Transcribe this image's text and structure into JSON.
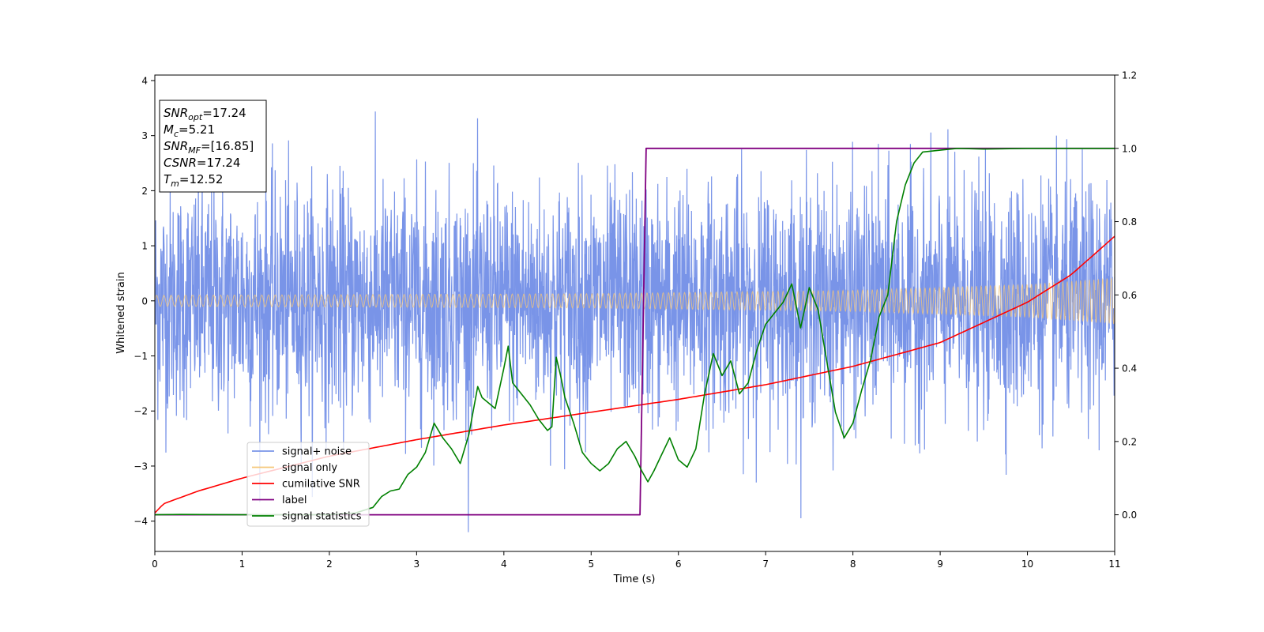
{
  "chart_data": {
    "type": "line",
    "xlabel": "Time (s)",
    "ylabel": "Whitened strain",
    "xlim": [
      0,
      11
    ],
    "ylim_left": [
      -4.55,
      4.1
    ],
    "ylim_right": [
      -0.1,
      1.2
    ],
    "xticks": [
      0,
      1,
      2,
      3,
      4,
      5,
      6,
      7,
      8,
      9,
      10,
      11
    ],
    "yticks_left": [
      -4,
      -3,
      -2,
      -1,
      0,
      1,
      2,
      3,
      4
    ],
    "yticks_right": [
      0.0,
      0.2,
      0.4,
      0.6,
      0.8,
      1.0,
      1.2
    ],
    "grid": false,
    "legend_position": "lower-left",
    "info_box": {
      "lines": [
        {
          "symbol": "SNR",
          "sub": "opt",
          "text": "=17.24"
        },
        {
          "symbol": "M",
          "sub": "c",
          "text": "=5.21"
        },
        {
          "symbol": "SNR",
          "sub": "MF",
          "text": "=[16.85]"
        },
        {
          "symbol": "CSNR",
          "sub": "",
          "text": "=17.24"
        },
        {
          "symbol": "T",
          "sub": "m",
          "text": "=12.52"
        }
      ]
    },
    "series": [
      {
        "name": "signal+ noise",
        "axis": "left",
        "color": "#7994e8",
        "kind": "noise",
        "approx_amplitude_range": [
          -4.2,
          3.7
        ]
      },
      {
        "name": "signal only",
        "axis": "left",
        "color": "#f5c77a",
        "kind": "chirp",
        "envelope": {
          "x": [
            0,
            5,
            8,
            10,
            11
          ],
          "amplitude": [
            0.1,
            0.13,
            0.19,
            0.3,
            0.42
          ]
        }
      },
      {
        "name": "cumilative SNR",
        "axis": "right",
        "color": "#ff0000",
        "x": [
          0,
          0.1,
          0.5,
          1,
          2,
          3,
          4,
          5,
          6,
          7,
          8,
          9,
          10,
          10.5,
          11
        ],
        "y": [
          0.005,
          0.03,
          0.065,
          0.1,
          0.16,
          0.205,
          0.245,
          0.28,
          0.315,
          0.355,
          0.405,
          0.47,
          0.58,
          0.655,
          0.76
        ]
      },
      {
        "name": "label",
        "axis": "right",
        "color": "#800080",
        "x": [
          0,
          5.56,
          5.63,
          11
        ],
        "y": [
          0,
          0,
          1,
          1
        ]
      },
      {
        "name": "signal statistics",
        "axis": "right",
        "color": "#008000",
        "x": [
          0,
          0.3,
          1.0,
          2.0,
          2.3,
          2.5,
          2.6,
          2.7,
          2.8,
          2.9,
          3.0,
          3.1,
          3.2,
          3.3,
          3.4,
          3.5,
          3.6,
          3.7,
          3.75,
          3.9,
          4.0,
          4.05,
          4.1,
          4.2,
          4.3,
          4.4,
          4.5,
          4.55,
          4.6,
          4.65,
          4.7,
          4.8,
          4.9,
          5.0,
          5.1,
          5.2,
          5.3,
          5.4,
          5.5,
          5.58,
          5.65,
          5.72,
          5.8,
          5.9,
          6.0,
          6.1,
          6.2,
          6.3,
          6.4,
          6.5,
          6.6,
          6.7,
          6.8,
          6.9,
          7.0,
          7.1,
          7.2,
          7.3,
          7.4,
          7.5,
          7.6,
          7.7,
          7.8,
          7.9,
          8.0,
          8.1,
          8.2,
          8.3,
          8.4,
          8.5,
          8.6,
          8.7,
          8.8,
          9.0,
          9.2,
          9.5,
          10.0,
          11.0
        ],
        "y": [
          0,
          0.001,
          0,
          0,
          0.005,
          0.02,
          0.05,
          0.065,
          0.07,
          0.11,
          0.13,
          0.17,
          0.25,
          0.21,
          0.18,
          0.14,
          0.22,
          0.35,
          0.32,
          0.29,
          0.4,
          0.46,
          0.36,
          0.33,
          0.3,
          0.26,
          0.23,
          0.24,
          0.43,
          0.38,
          0.32,
          0.25,
          0.17,
          0.14,
          0.12,
          0.14,
          0.18,
          0.2,
          0.16,
          0.12,
          0.09,
          0.12,
          0.16,
          0.21,
          0.15,
          0.13,
          0.18,
          0.33,
          0.44,
          0.38,
          0.42,
          0.33,
          0.36,
          0.45,
          0.52,
          0.55,
          0.58,
          0.63,
          0.51,
          0.62,
          0.56,
          0.42,
          0.28,
          0.21,
          0.25,
          0.34,
          0.42,
          0.54,
          0.6,
          0.8,
          0.9,
          0.96,
          0.99,
          0.995,
          1.0,
          0.998,
          1.0,
          1.0
        ]
      }
    ]
  }
}
